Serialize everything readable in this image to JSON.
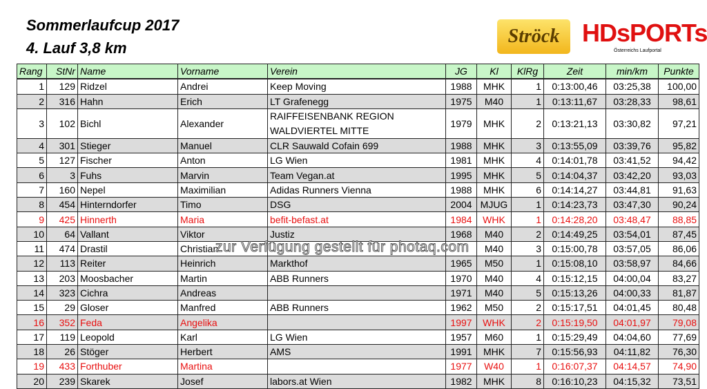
{
  "title": "Sommerlaufcup 2017",
  "subtitle": "4. Lauf 3,8 km",
  "logos": {
    "left": "Ströck",
    "right": "HDsports.at",
    "right_tag": "Österreichs Laufportal"
  },
  "watermark": "zur Verfügung gestellt für photaq.com",
  "colors": {
    "header_bg": "#c8f6c8",
    "highlight": "#e81010",
    "alt_row": "#dcdcdc"
  },
  "columns": [
    "Rang",
    "StNr",
    "Name",
    "Vorname",
    "Verein",
    "JG",
    "Kl",
    "KlRg",
    "Zeit",
    "min/km",
    "Punkte"
  ],
  "rows": [
    [
      "1",
      "129",
      "Ridzel",
      "Andrei",
      "Keep Moving",
      "1988",
      "MHK",
      "1",
      "0:13:00,46",
      "03:25,38",
      "100,00"
    ],
    [
      "2",
      "316",
      "Hahn",
      "Erich",
      "LT Grafenegg",
      "1975",
      "M40",
      "1",
      "0:13:11,67",
      "03:28,33",
      "98,61"
    ],
    [
      "3",
      "102",
      "Bichl",
      "Alexander",
      "RAIFFEISENBANK REGION WALDVIERTEL MITTE",
      "1979",
      "MHK",
      "2",
      "0:13:21,13",
      "03:30,82",
      "97,21"
    ],
    [
      "4",
      "301",
      "Stieger",
      "Manuel",
      "CLR Sauwald Cofain 699",
      "1988",
      "MHK",
      "3",
      "0:13:55,09",
      "03:39,76",
      "95,82"
    ],
    [
      "5",
      "127",
      "Fischer",
      "Anton",
      "LG Wien",
      "1981",
      "MHK",
      "4",
      "0:14:01,78",
      "03:41,52",
      "94,42"
    ],
    [
      "6",
      "3",
      "Fuhs",
      "Marvin",
      "Team Vegan.at",
      "1995",
      "MHK",
      "5",
      "0:14:04,37",
      "03:42,20",
      "93,03"
    ],
    [
      "7",
      "160",
      "Nepel",
      "Maximilian",
      "Adidas Runners Vienna",
      "1988",
      "MHK",
      "6",
      "0:14:14,27",
      "03:44,81",
      "91,63"
    ],
    [
      "8",
      "454",
      "Hinterndorfer",
      "Timo",
      "DSG",
      "2004",
      "MJUG",
      "1",
      "0:14:23,73",
      "03:47,30",
      "90,24"
    ],
    [
      "9",
      "425",
      "Hinnerth",
      "Maria",
      "befit-befast.at",
      "1984",
      "WHK",
      "1",
      "0:14:28,20",
      "03:48,47",
      "88,85"
    ],
    [
      "10",
      "64",
      "Vallant",
      "Viktor",
      "Justiz",
      "1968",
      "M40",
      "2",
      "0:14:49,25",
      "03:54,01",
      "87,45"
    ],
    [
      "11",
      "474",
      "Drastil",
      "Christian",
      "",
      "",
      "M40",
      "3",
      "0:15:00,78",
      "03:57,05",
      "86,06"
    ],
    [
      "12",
      "113",
      "Reiter",
      "Heinrich",
      "Markthof",
      "1965",
      "M50",
      "1",
      "0:15:08,10",
      "03:58,97",
      "84,66"
    ],
    [
      "13",
      "203",
      "Moosbacher",
      "Martin",
      "ABB Runners",
      "1970",
      "M40",
      "4",
      "0:15:12,15",
      "04:00,04",
      "83,27"
    ],
    [
      "14",
      "323",
      "Cichra",
      "Andreas",
      "",
      "1971",
      "M40",
      "5",
      "0:15:13,26",
      "04:00,33",
      "81,87"
    ],
    [
      "15",
      "29",
      "Gloser",
      "Manfred",
      "ABB Runners",
      "1962",
      "M50",
      "2",
      "0:15:17,51",
      "04:01,45",
      "80,48"
    ],
    [
      "16",
      "352",
      "Feda",
      "Angelika",
      "",
      "1997",
      "WHK",
      "2",
      "0:15:19,50",
      "04:01,97",
      "79,08"
    ],
    [
      "17",
      "119",
      "Leopold",
      "Karl",
      "LG Wien",
      "1957",
      "M60",
      "1",
      "0:15:29,49",
      "04:04,60",
      "77,69"
    ],
    [
      "18",
      "26",
      "Stöger",
      "Herbert",
      "AMS",
      "1991",
      "MHK",
      "7",
      "0:15:56,93",
      "04:11,82",
      "76,30"
    ],
    [
      "19",
      "433",
      "Forthuber",
      "Martina",
      "",
      "1977",
      "W40",
      "1",
      "0:16:07,37",
      "04:14,57",
      "74,90"
    ],
    [
      "20",
      "239",
      "Skarek",
      "Josef",
      "labors.at Wien",
      "1982",
      "MHK",
      "8",
      "0:16:10,23",
      "04:15,32",
      "73,51"
    ]
  ],
  "highlight_rows": [
    9,
    16,
    19
  ]
}
